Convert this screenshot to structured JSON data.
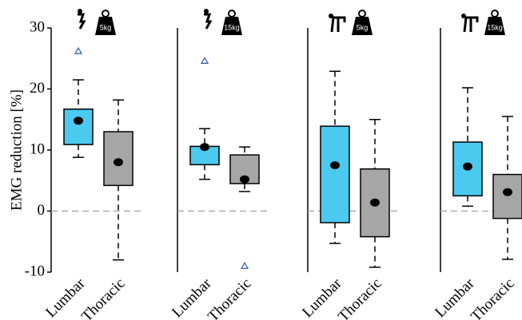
{
  "chart_data": [
    {
      "type": "box",
      "load_label": "5kg",
      "ylabel": "EMG reduction [%]",
      "ylim": [
        -10,
        30
      ],
      "yticks": [
        -10,
        0,
        10,
        20,
        30
      ],
      "reference_line": 0,
      "categories": [
        "Lumbar",
        "Thoracic"
      ],
      "boxes": [
        {
          "color": "#4cc9ef",
          "whisker_low": 8.8,
          "q1": 10.9,
          "q3": 16.7,
          "whisker_high": 21.5,
          "mean": 14.8,
          "outliers": [
            26.2
          ]
        },
        {
          "color": "#a6a6a6",
          "whisker_low": -8.0,
          "q1": 4.2,
          "q3": 13.0,
          "whisker_high": 18.2,
          "mean": 8.0,
          "outliers": []
        }
      ]
    },
    {
      "type": "box",
      "load_label": "15kg",
      "ylim": [
        -10,
        30
      ],
      "reference_line": 0,
      "categories": [
        "Lumbar",
        "Thoracic"
      ],
      "boxes": [
        {
          "color": "#4cc9ef",
          "whisker_low": 5.2,
          "q1": 7.6,
          "q3": 10.6,
          "whisker_high": 13.5,
          "mean": 10.5,
          "outliers": [
            24.6
          ]
        },
        {
          "color": "#a6a6a6",
          "whisker_low": 3.2,
          "q1": 4.5,
          "q3": 9.2,
          "whisker_high": 10.5,
          "mean": 5.2,
          "outliers": [
            -9.0
          ]
        }
      ]
    },
    {
      "type": "box",
      "load_label": "5kg",
      "ylim": [
        -10,
        30
      ],
      "reference_line": 0,
      "categories": [
        "Lumbar",
        "Thoracic"
      ],
      "boxes": [
        {
          "color": "#4cc9ef",
          "whisker_low": -5.3,
          "q1": -1.9,
          "q3": 13.9,
          "whisker_high": 22.9,
          "mean": 7.5,
          "outliers": []
        },
        {
          "color": "#a6a6a6",
          "whisker_low": -9.2,
          "q1": -4.2,
          "q3": 6.9,
          "whisker_high": 15.0,
          "mean": 1.4,
          "outliers": []
        }
      ]
    },
    {
      "type": "box",
      "load_label": "15kg",
      "ylim": [
        -10,
        30
      ],
      "reference_line": 0,
      "categories": [
        "Lumbar",
        "Thoracic"
      ],
      "boxes": [
        {
          "color": "#4cc9ef",
          "whisker_low": 0.8,
          "q1": 2.5,
          "q3": 11.3,
          "whisker_high": 20.2,
          "mean": 7.3,
          "outliers": []
        },
        {
          "color": "#a6a6a6",
          "whisker_low": -7.9,
          "q1": -1.2,
          "q3": 6.0,
          "whisker_high": 15.5,
          "mean": 3.1,
          "outliers": []
        }
      ]
    }
  ]
}
